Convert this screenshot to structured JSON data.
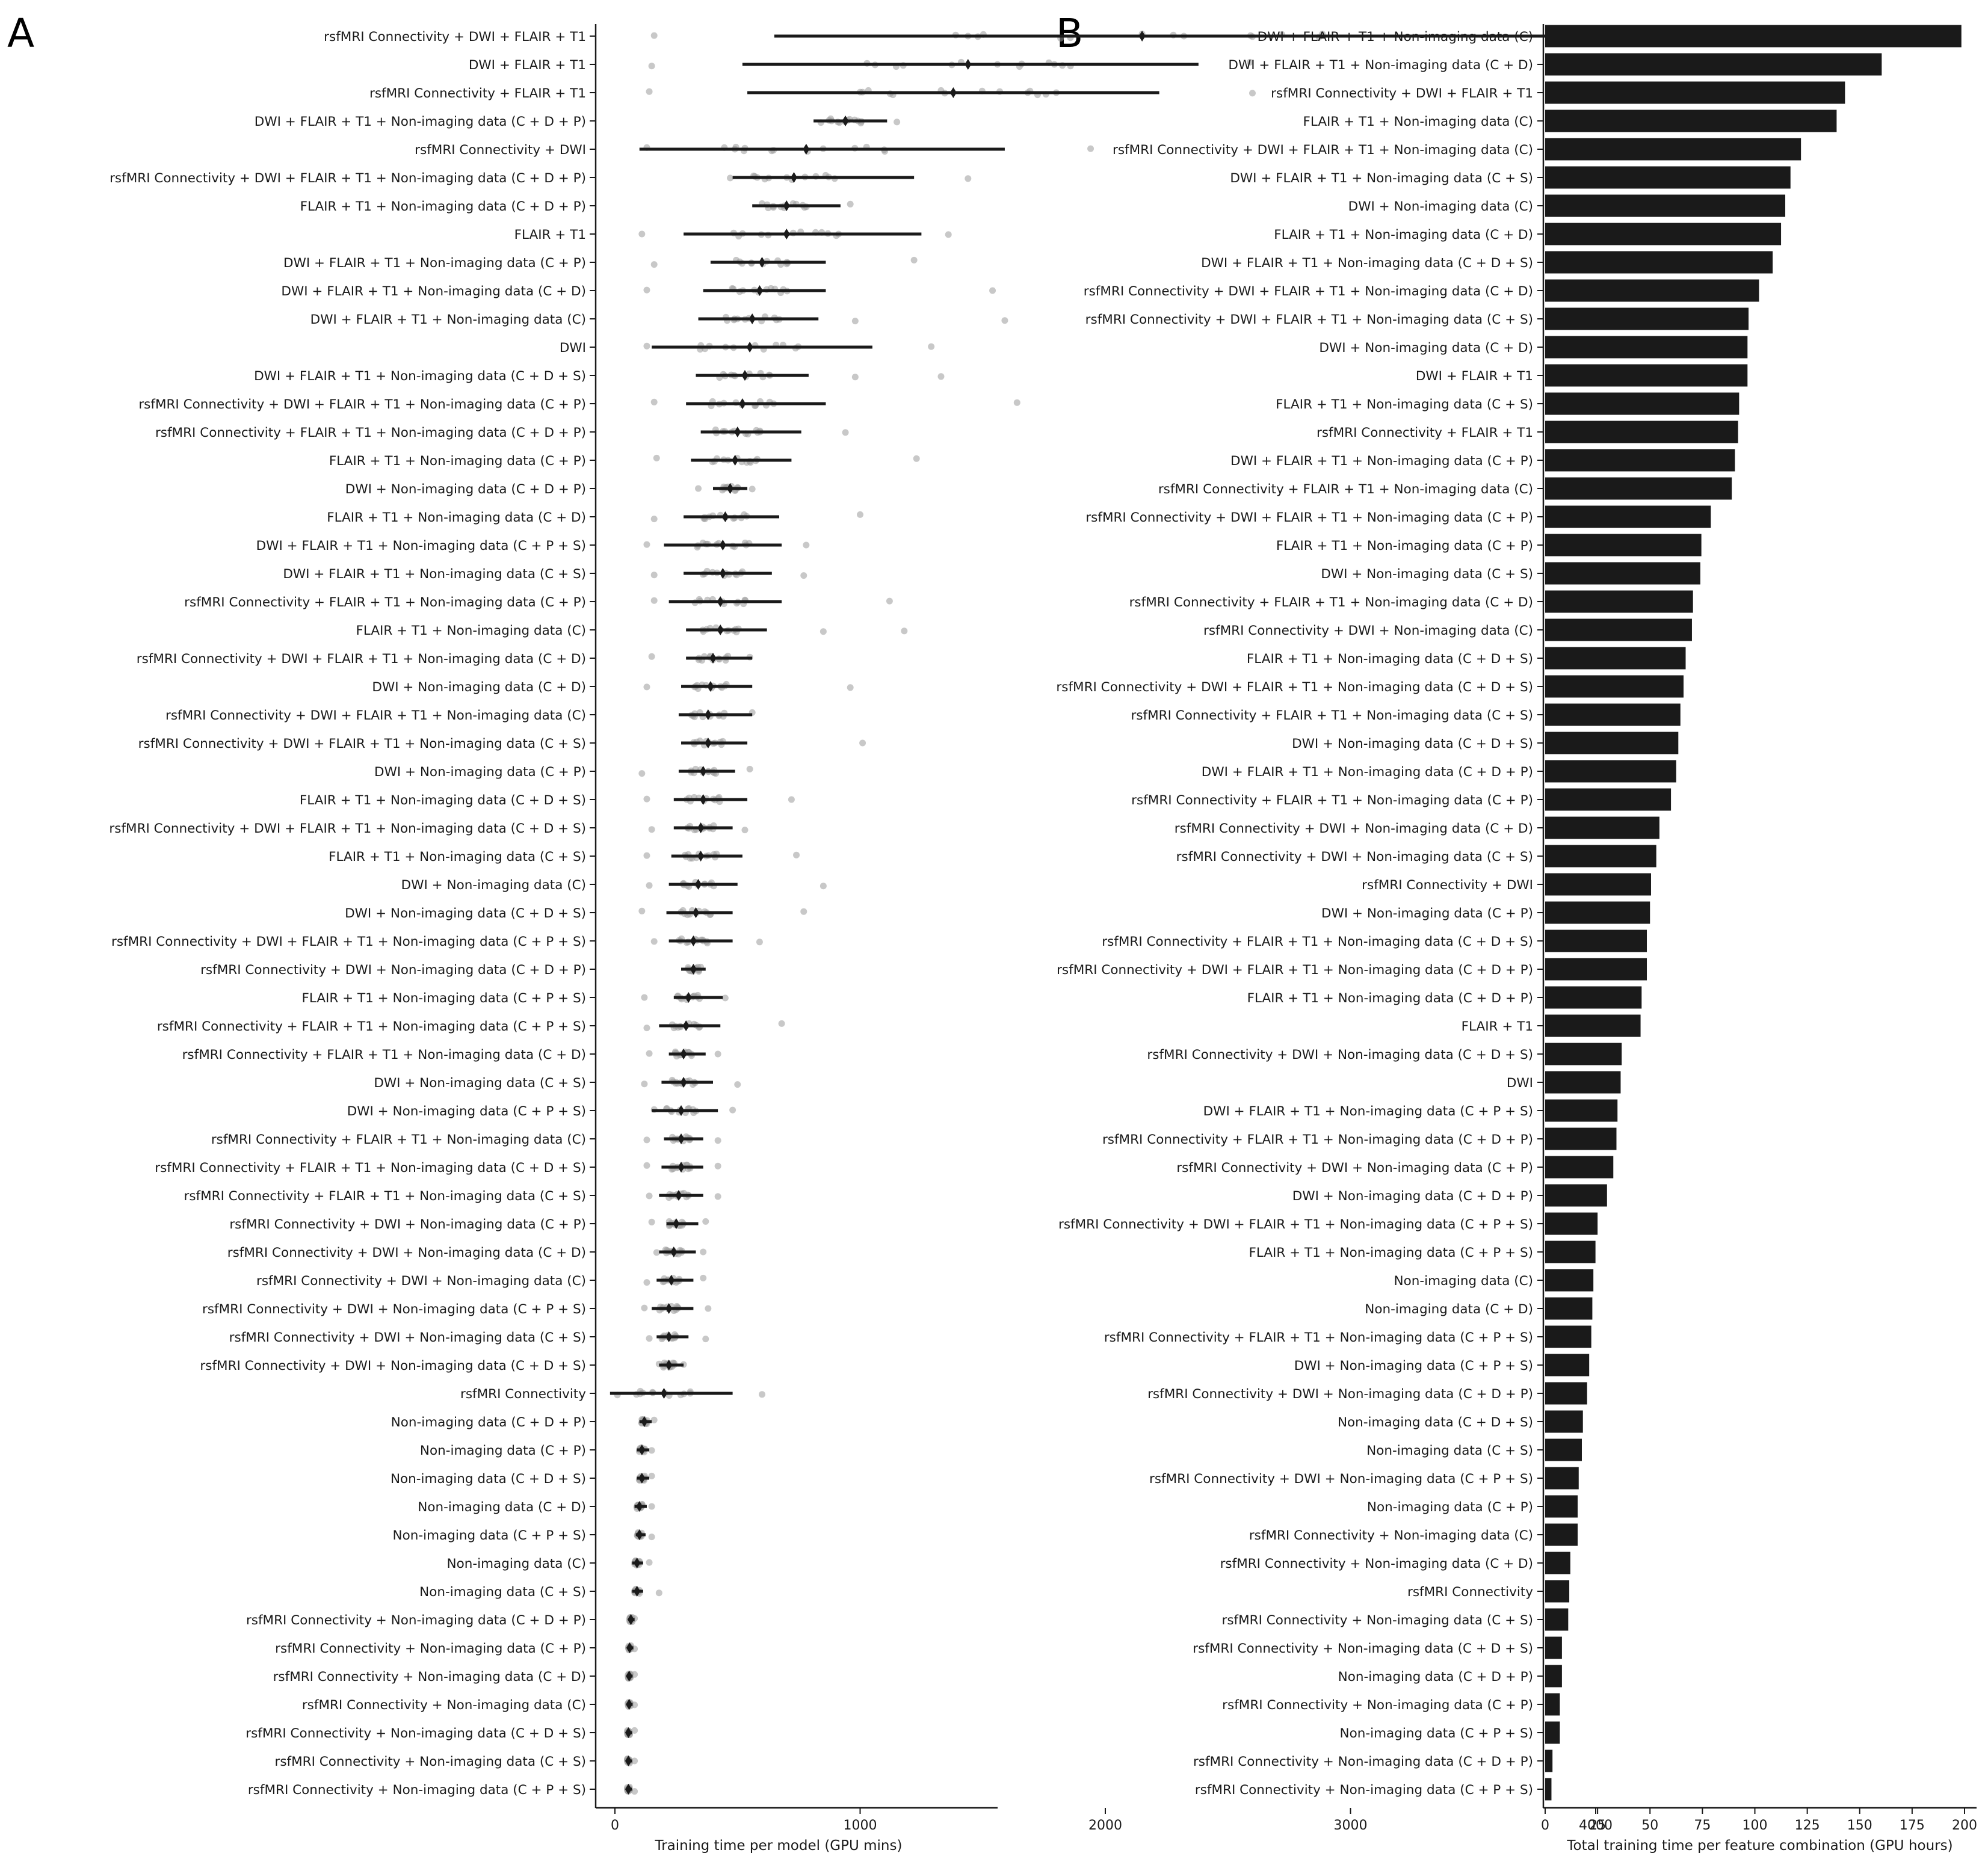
{
  "chart_data": [
    {
      "panel_label": "A",
      "type": "scatter",
      "description": "Mean (diamond) with error bar and individual model training times (grey dots) per feature combination",
      "xlabel": "Training time per model (GPU mins)",
      "ylabel": "",
      "xlim": [
        -200,
        4700
      ],
      "xticks": [
        0,
        1000,
        2000,
        3000,
        4000
      ],
      "categories": [
        "rsfMRI Connectivity + DWI + FLAIR + T1",
        "DWI + FLAIR + T1",
        "rsfMRI Connectivity + FLAIR + T1",
        "DWI + FLAIR + T1 + Non-imaging data (C + D + P)",
        "rsfMRI Connectivity + DWI",
        "rsfMRI Connectivity + DWI + FLAIR + T1 + Non-imaging data (C + D + P)",
        "FLAIR + T1 + Non-imaging data (C + D + P)",
        "FLAIR + T1",
        "DWI + FLAIR + T1 + Non-imaging data (C + P)",
        "DWI + FLAIR + T1 + Non-imaging data (C + D)",
        "DWI + FLAIR + T1 + Non-imaging data (C)",
        "DWI",
        "DWI + FLAIR + T1 + Non-imaging data (C + D + S)",
        "rsfMRI Connectivity + DWI + FLAIR + T1 + Non-imaging data (C + P)",
        "rsfMRI Connectivity + FLAIR + T1 + Non-imaging data (C + D + P)",
        "FLAIR + T1 + Non-imaging data (C + P)",
        "DWI + Non-imaging data (C + D + P)",
        "FLAIR + T1 + Non-imaging data (C + D)",
        "DWI + FLAIR + T1 + Non-imaging data (C + P + S)",
        "DWI + FLAIR + T1 + Non-imaging data (C + S)",
        "rsfMRI Connectivity + FLAIR + T1 + Non-imaging data (C + P)",
        "FLAIR + T1 + Non-imaging data (C)",
        "rsfMRI Connectivity + DWI + FLAIR + T1 + Non-imaging data (C + D)",
        "DWI + Non-imaging data (C + D)",
        "rsfMRI Connectivity + DWI + FLAIR + T1 + Non-imaging data (C)",
        "rsfMRI Connectivity + DWI + FLAIR + T1 + Non-imaging data (C + S)",
        "DWI + Non-imaging data (C + P)",
        "FLAIR + T1 + Non-imaging data (C + D + S)",
        "rsfMRI Connectivity + DWI + FLAIR + T1 + Non-imaging data (C + D + S)",
        "FLAIR + T1 + Non-imaging data (C + S)",
        "DWI + Non-imaging data (C)",
        "DWI + Non-imaging data (C + D + S)",
        "rsfMRI Connectivity + DWI + FLAIR + T1 + Non-imaging data (C + P + S)",
        "rsfMRI Connectivity + DWI + Non-imaging data (C + D + P)",
        "FLAIR + T1 + Non-imaging data (C + P + S)",
        "rsfMRI Connectivity + FLAIR + T1 + Non-imaging data (C + P + S)",
        "rsfMRI Connectivity + FLAIR + T1 + Non-imaging data (C + D)",
        "DWI + Non-imaging data (C + S)",
        "DWI + Non-imaging data (C + P + S)",
        "rsfMRI Connectivity + FLAIR + T1 + Non-imaging data (C)",
        "rsfMRI Connectivity + FLAIR + T1 + Non-imaging data (C + D + S)",
        "rsfMRI Connectivity + FLAIR + T1 + Non-imaging data (C + S)",
        "rsfMRI Connectivity + DWI + Non-imaging data (C + P)",
        "rsfMRI Connectivity + DWI + Non-imaging data (C + D)",
        "rsfMRI Connectivity + DWI + Non-imaging data (C)",
        "rsfMRI Connectivity + DWI + Non-imaging data (C + P + S)",
        "rsfMRI Connectivity + DWI + Non-imaging data (C + S)",
        "rsfMRI Connectivity + DWI + Non-imaging data (C + D + S)",
        "rsfMRI Connectivity",
        "Non-imaging data (C + D + P)",
        "Non-imaging data (C + P)",
        "Non-imaging data (C + D + S)",
        "Non-imaging data (C + D)",
        "Non-imaging data (C + P + S)",
        "Non-imaging data (C)",
        "Non-imaging data (C + S)",
        "rsfMRI Connectivity + Non-imaging data (C + D + P)",
        "rsfMRI Connectivity + Non-imaging data (C + P)",
        "rsfMRI Connectivity + Non-imaging data (C + D)",
        "rsfMRI Connectivity + Non-imaging data (C)",
        "rsfMRI Connectivity + Non-imaging data (C + D + S)",
        "rsfMRI Connectivity + Non-imaging data (C + S)",
        "rsfMRI Connectivity + Non-imaging data (C + P + S)"
      ],
      "mean": [
        2150,
        1440,
        1380,
        940,
        780,
        730,
        700,
        700,
        600,
        590,
        560,
        550,
        530,
        520,
        500,
        490,
        470,
        450,
        440,
        440,
        430,
        430,
        400,
        390,
        380,
        380,
        360,
        360,
        350,
        350,
        340,
        330,
        320,
        320,
        300,
        290,
        280,
        280,
        270,
        270,
        270,
        260,
        250,
        240,
        230,
        220,
        220,
        220,
        200,
        120,
        110,
        110,
        100,
        100,
        90,
        90,
        65,
        60,
        58,
        58,
        55,
        55,
        55
      ],
      "err_low": [
        650,
        520,
        540,
        810,
        100,
        480,
        560,
        280,
        390,
        360,
        340,
        150,
        330,
        290,
        350,
        310,
        400,
        280,
        200,
        280,
        220,
        290,
        290,
        270,
        260,
        270,
        260,
        240,
        240,
        230,
        220,
        210,
        220,
        270,
        240,
        180,
        220,
        190,
        150,
        200,
        190,
        180,
        210,
        180,
        170,
        150,
        170,
        180,
        -20,
        100,
        90,
        90,
        80,
        85,
        70,
        70,
        55,
        52,
        50,
        50,
        48,
        48,
        48
      ],
      "err_high": [
        4050,
        2380,
        2220,
        1110,
        1590,
        1220,
        920,
        1250,
        860,
        860,
        830,
        1050,
        790,
        860,
        760,
        720,
        540,
        670,
        680,
        640,
        680,
        620,
        560,
        560,
        560,
        540,
        490,
        540,
        480,
        520,
        500,
        480,
        480,
        370,
        440,
        430,
        370,
        400,
        420,
        360,
        360,
        360,
        340,
        330,
        320,
        320,
        300,
        280,
        480,
        150,
        140,
        140,
        130,
        125,
        115,
        115,
        80,
        75,
        72,
        72,
        70,
        70,
        70
      ],
      "outliers": [
        [
          160,
          1440,
          2600
        ],
        [
          150,
          1650,
          2590
        ],
        [
          140,
          1000,
          1800,
          2600
        ],
        [
          1150,
          840
        ],
        [
          130,
          530,
          1940
        ],
        [
          470,
          1440
        ],
        [
          600,
          960
        ],
        [
          110,
          1360
        ],
        [
          160,
          1220
        ],
        [
          130,
          1540
        ],
        [
          1590,
          980
        ],
        [
          130,
          1290
        ],
        [
          1330,
          980
        ],
        [
          160,
          1640
        ],
        [
          940
        ],
        [
          170,
          1230
        ],
        [
          340,
          560
        ],
        [
          160,
          1000
        ],
        [
          130,
          780
        ],
        [
          160,
          770
        ],
        [
          160,
          1120
        ],
        [
          1180,
          850
        ],
        [
          150,
          550
        ],
        [
          130,
          960
        ],
        [
          560
        ],
        [
          1010
        ],
        [
          110,
          550
        ],
        [
          130,
          720
        ],
        [
          150,
          530
        ],
        [
          740,
          130
        ],
        [
          140,
          850
        ],
        [
          110,
          770
        ],
        [
          160,
          590
        ],
        [
          350
        ],
        [
          120,
          450
        ],
        [
          130,
          680
        ],
        [
          140,
          420
        ],
        [
          120,
          500
        ],
        [
          160,
          480
        ],
        [
          130,
          420
        ],
        [
          130,
          420
        ],
        [
          140,
          420
        ],
        [
          370,
          150
        ],
        [
          360,
          170
        ],
        [
          130,
          360
        ],
        [
          120,
          380
        ],
        [
          140,
          370
        ],
        [
          180,
          280
        ],
        [
          600,
          10
        ],
        [
          160
        ],
        [
          150
        ],
        [
          150
        ],
        [
          150
        ],
        [
          150
        ],
        [
          140
        ],
        [
          180
        ],
        [
          80
        ],
        [
          80
        ],
        [
          80
        ],
        [
          80
        ],
        [
          80
        ],
        [
          80
        ],
        [
          80
        ]
      ]
    },
    {
      "panel_label": "B",
      "type": "bar",
      "orientation": "horizontal",
      "xlabel": "Total training time per feature combination (GPU hours)",
      "ylabel": "",
      "xlim": [
        0,
        205
      ],
      "xticks": [
        0,
        25,
        50,
        75,
        100,
        125,
        150,
        175,
        200
      ],
      "color": "#1a1a1a",
      "categories": [
        "DWI + FLAIR + T1 + Non-imaging data (C)",
        "DWI + FLAIR + T1 + Non-imaging data (C + D)",
        "rsfMRI Connectivity + DWI + FLAIR + T1",
        "FLAIR + T1 + Non-imaging data (C)",
        "rsfMRI Connectivity + DWI + FLAIR + T1 + Non-imaging data (C)",
        "DWI + FLAIR + T1 + Non-imaging data (C + S)",
        "DWI + Non-imaging data (C)",
        "FLAIR + T1 + Non-imaging data (C + D)",
        "DWI + FLAIR + T1 + Non-imaging data (C + D + S)",
        "rsfMRI Connectivity + DWI + FLAIR + T1 + Non-imaging data (C + D)",
        "rsfMRI Connectivity + DWI + FLAIR + T1 + Non-imaging data (C + S)",
        "DWI + Non-imaging data (C + D)",
        "DWI + FLAIR + T1",
        "FLAIR + T1 + Non-imaging data (C + S)",
        "rsfMRI Connectivity + FLAIR + T1",
        "DWI + FLAIR + T1 + Non-imaging data (C + P)",
        "rsfMRI Connectivity + FLAIR + T1 + Non-imaging data (C)",
        "rsfMRI Connectivity + DWI + FLAIR + T1 + Non-imaging data (C + P)",
        "FLAIR + T1 + Non-imaging data (C + P)",
        "DWI + Non-imaging data (C + S)",
        "rsfMRI Connectivity + FLAIR + T1 + Non-imaging data (C + D)",
        "rsfMRI Connectivity + DWI + Non-imaging data (C)",
        "FLAIR + T1 + Non-imaging data (C + D + S)",
        "rsfMRI Connectivity + DWI + FLAIR + T1 + Non-imaging data (C + D + S)",
        "rsfMRI Connectivity + FLAIR + T1 + Non-imaging data (C + S)",
        "DWI + Non-imaging data (C + D + S)",
        "DWI + FLAIR + T1 + Non-imaging data (C + D + P)",
        "rsfMRI Connectivity + FLAIR + T1 + Non-imaging data (C + P)",
        "rsfMRI Connectivity + DWI + Non-imaging data (C + D)",
        "rsfMRI Connectivity + DWI + Non-imaging data (C + S)",
        "rsfMRI Connectivity + DWI",
        "DWI + Non-imaging data (C + P)",
        "rsfMRI Connectivity + FLAIR + T1 + Non-imaging data (C + D + S)",
        "rsfMRI Connectivity + DWI + FLAIR + T1 + Non-imaging data (C + D + P)",
        "FLAIR + T1 + Non-imaging data (C + D + P)",
        "FLAIR + T1",
        "rsfMRI Connectivity + DWI + Non-imaging data (C + D + S)",
        "DWI",
        "DWI + FLAIR + T1 + Non-imaging data (C + P + S)",
        "rsfMRI Connectivity + FLAIR + T1 + Non-imaging data (C + D + P)",
        "rsfMRI Connectivity + DWI + Non-imaging data (C + P)",
        "DWI + Non-imaging data (C + D + P)",
        "rsfMRI Connectivity + DWI + FLAIR + T1 + Non-imaging data (C + P + S)",
        "FLAIR + T1 + Non-imaging data (C + P + S)",
        "Non-imaging data (C)",
        "Non-imaging data (C + D)",
        "rsfMRI Connectivity + FLAIR + T1 + Non-imaging data (C + P + S)",
        "DWI + Non-imaging data (C + P + S)",
        "rsfMRI Connectivity + DWI + Non-imaging data (C + D + P)",
        "Non-imaging data (C + D + S)",
        "Non-imaging data (C + S)",
        "rsfMRI Connectivity + DWI + Non-imaging data (C + P + S)",
        "Non-imaging data (C + P)",
        "rsfMRI Connectivity + Non-imaging data (C)",
        "rsfMRI Connectivity + Non-imaging data (C + D)",
        "rsfMRI Connectivity",
        "rsfMRI Connectivity + Non-imaging data (C + S)",
        "rsfMRI Connectivity + Non-imaging data (C + D + S)",
        "Non-imaging data (C + D + P)",
        "rsfMRI Connectivity + Non-imaging data (C + P)",
        "Non-imaging data (C + P + S)",
        "rsfMRI Connectivity + Non-imaging data (C + D + P)",
        "rsfMRI Connectivity + Non-imaging data (C + P + S)"
      ],
      "values": [
        198.5,
        160.5,
        143,
        139,
        122,
        117,
        114.5,
        112.5,
        108.5,
        102,
        97,
        96.5,
        96.5,
        92.5,
        92,
        90.5,
        89,
        79,
        74.5,
        74,
        70.5,
        70,
        67,
        66,
        64.5,
        63.5,
        62.5,
        60,
        54.5,
        53,
        50.5,
        50,
        48.5,
        48.5,
        46,
        45.5,
        36.5,
        36,
        34.5,
        34,
        32.5,
        29.5,
        25,
        24,
        23,
        22.5,
        22,
        21,
        20,
        18,
        17.5,
        16,
        15.5,
        15.5,
        12,
        11.5,
        11,
        8,
        8,
        7,
        7,
        3.5,
        3
      ]
    }
  ]
}
